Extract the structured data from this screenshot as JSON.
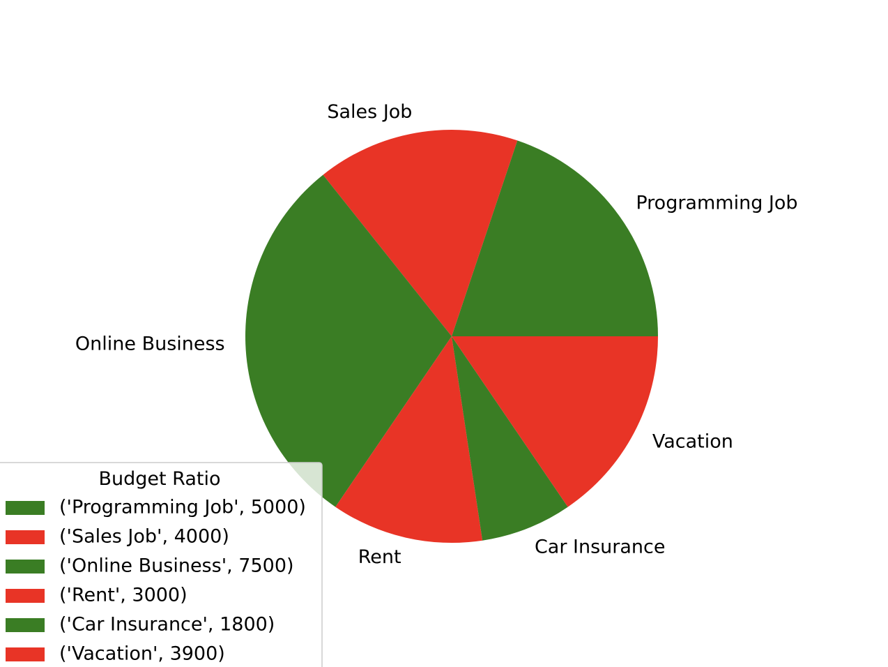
{
  "chart_data": {
    "type": "pie",
    "categories": [
      "Programming Job",
      "Sales Job",
      "Online Business",
      "Rent",
      "Car Insurance",
      "Vacation"
    ],
    "values": [
      5000,
      4000,
      7500,
      3000,
      1800,
      3900
    ],
    "colors": [
      "#3a7d24",
      "#e83426",
      "#3a7d24",
      "#e83426",
      "#3a7d24",
      "#e83426"
    ],
    "start_angle_deg": 0,
    "direction": "counterclockwise",
    "legend": {
      "title": "Budget Ratio",
      "placement": "lower-left",
      "entries": [
        "('Programming Job', 5000)",
        "('Sales Job', 4000)",
        "('Online Business', 7500)",
        "('Rent', 3000)",
        "('Car Insurance', 1800)",
        "('Vacation', 3900)"
      ]
    }
  }
}
